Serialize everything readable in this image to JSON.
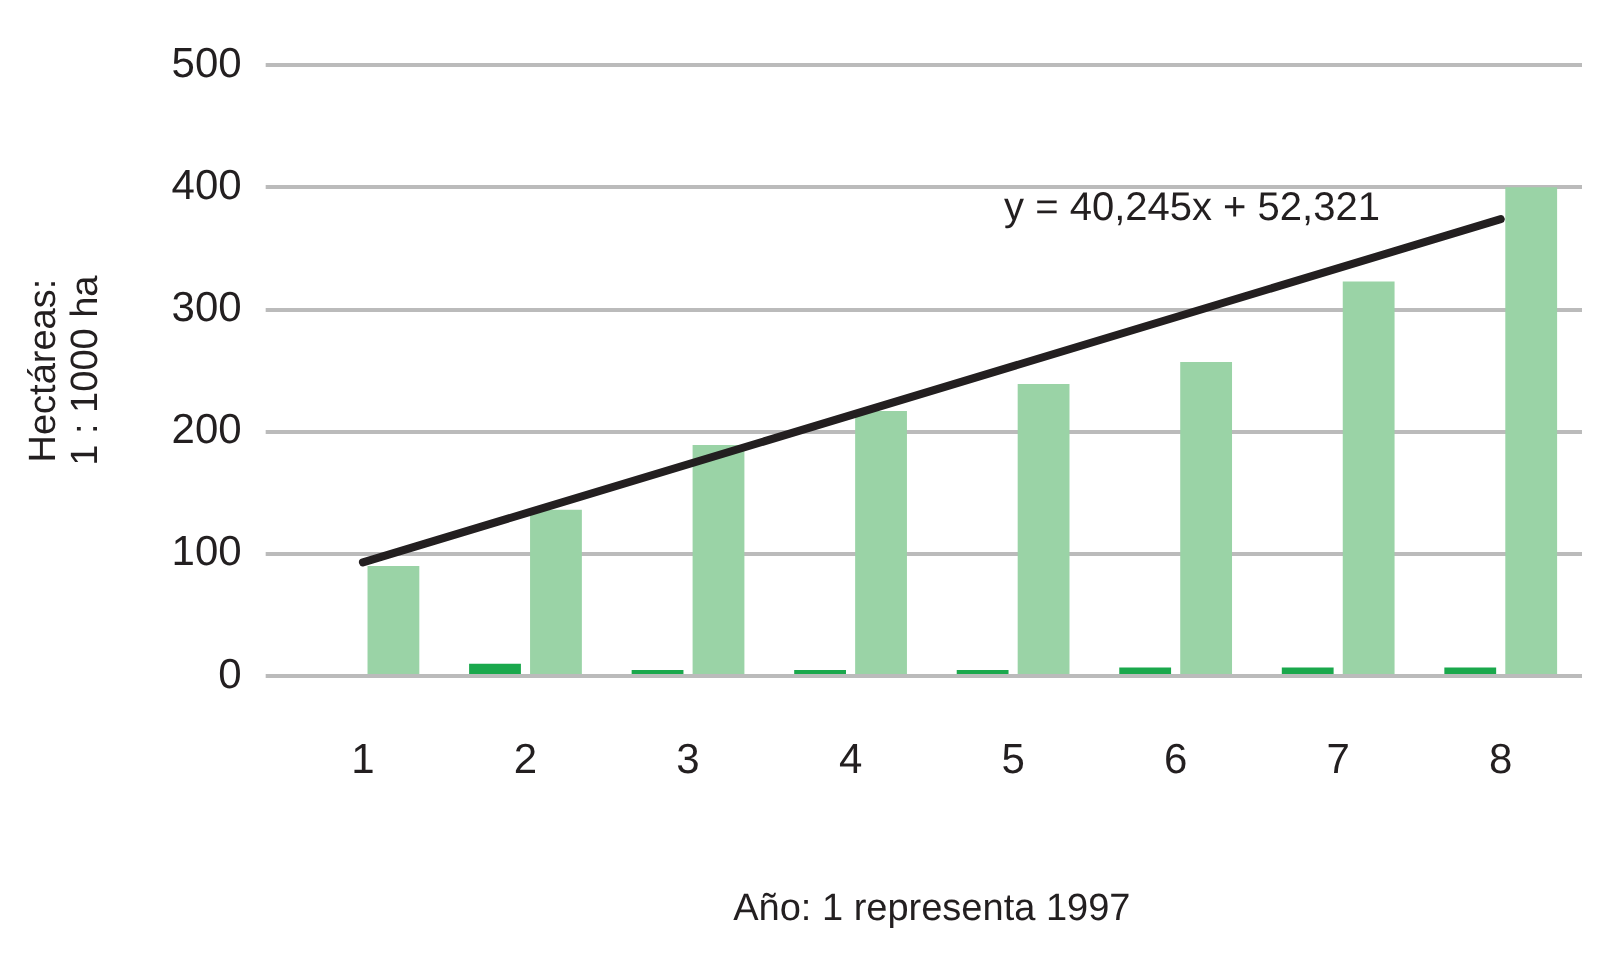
{
  "chart_data": {
    "type": "bar",
    "xlabel": "Año: 1 representa 1997",
    "ylabel": "Hectáreas:\n1 : 1000 ha",
    "categories": [
      "1",
      "2",
      "3",
      "4",
      "5",
      "6",
      "7",
      "8"
    ],
    "series": [
      {
        "color": "#1aa84c",
        "values": [
          0,
          10,
          5,
          5,
          5,
          7,
          7,
          7
        ]
      },
      {
        "color": "#9ad3a6",
        "values": [
          90,
          136,
          189,
          217,
          239,
          257,
          323,
          400
        ]
      },
      {
        "type": "line",
        "color": "#231f20",
        "x": [
          "1",
          "8"
        ],
        "values": [
          93,
          374
        ]
      }
    ],
    "ylim": [
      0,
      500
    ],
    "yticks": [
      0,
      100,
      200,
      300,
      400,
      500
    ],
    "grid": "y",
    "annotations": [
      "y = 40,245x + 52,321"
    ]
  }
}
